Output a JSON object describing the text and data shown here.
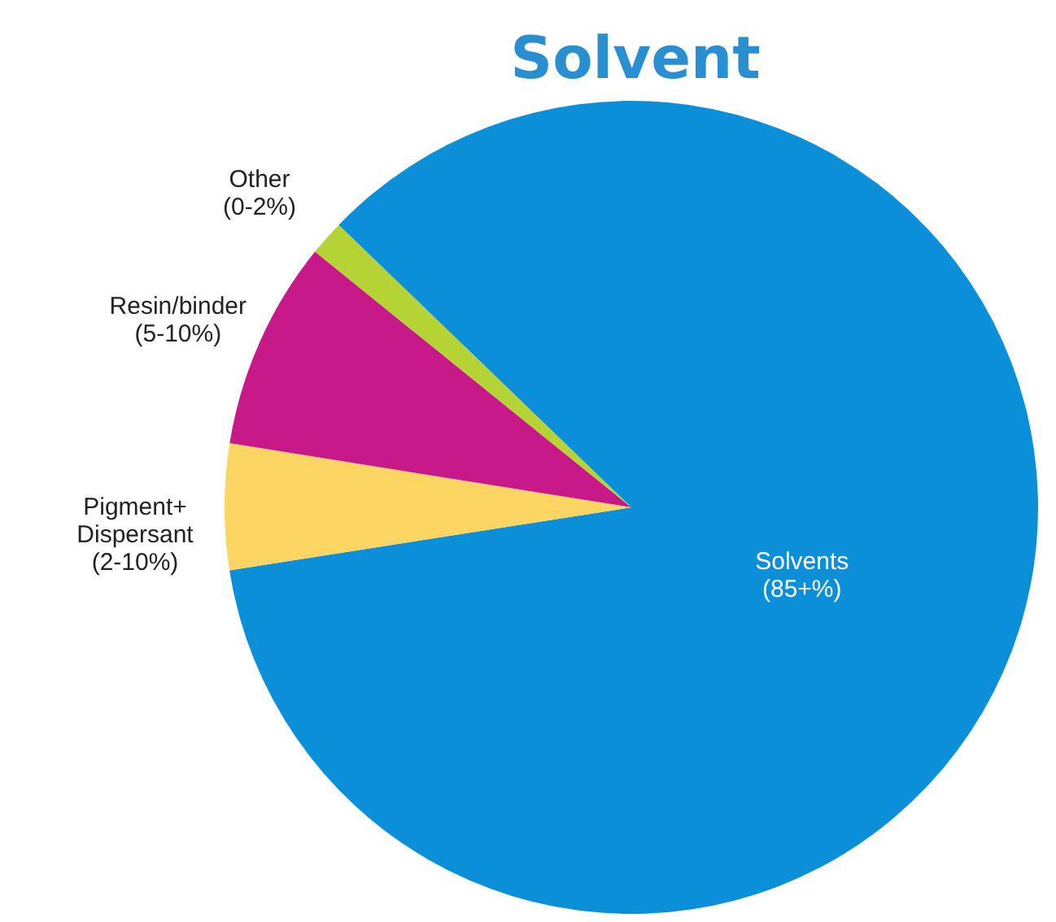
{
  "chart_data": {
    "type": "pie",
    "title": "Solvent",
    "categories": [
      "Solvents\n(85+%)",
      "Pigment+\nDispersant\n(2-10%)",
      "Resin/binder\n(5-10%)",
      "Other\n(0-2%)"
    ],
    "values": [
      85.3,
      5,
      8.3,
      1.4
    ],
    "colors": [
      "#0b8fd8",
      "#fdd562",
      "#c8198a",
      "#b5d334"
    ],
    "legend": false
  }
}
